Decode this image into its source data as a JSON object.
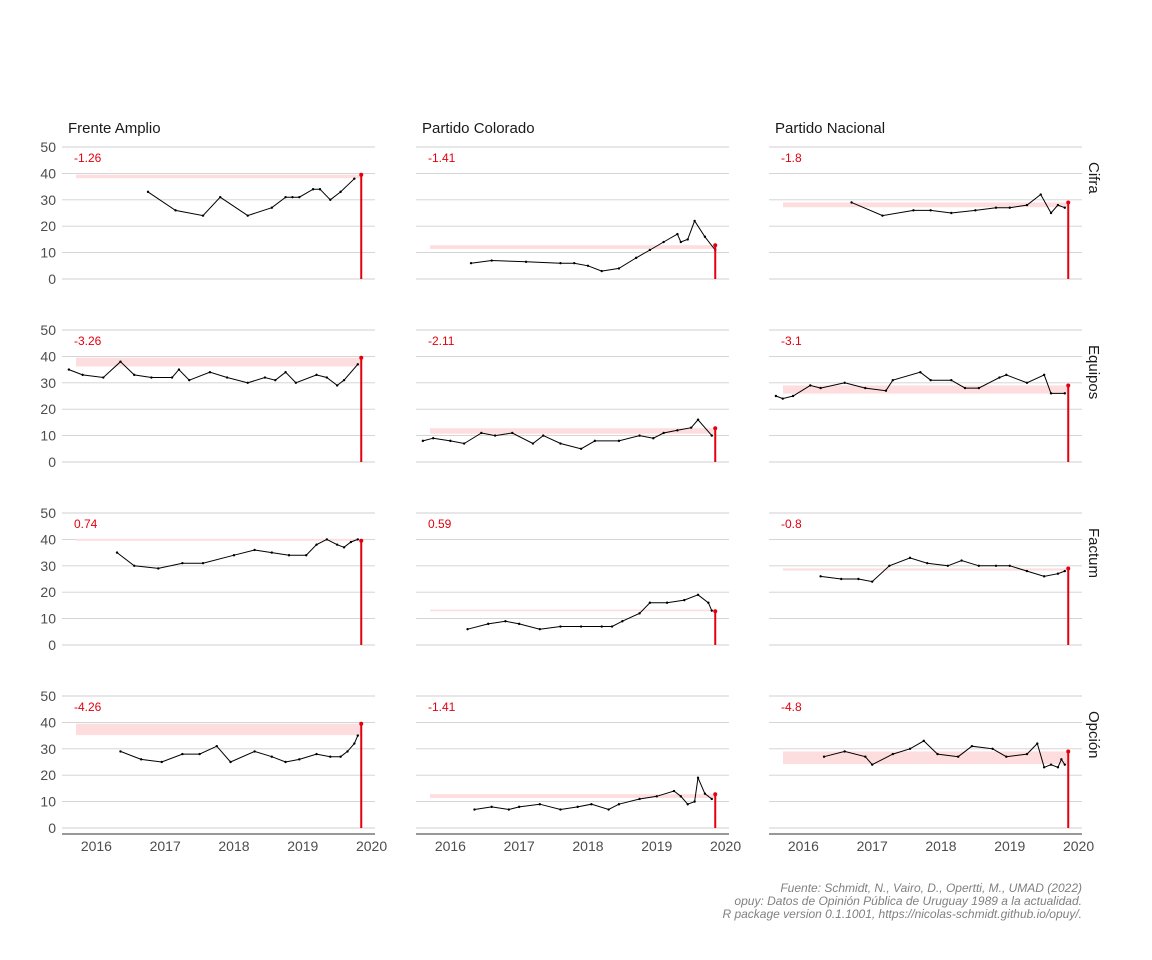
{
  "chart_data": {
    "type": "line",
    "layout": "faceted grid, 4 rows (pollster) x 3 columns (party)",
    "x_axis": {
      "ticks": [
        "2016",
        "2017",
        "2018",
        "2019",
        "2020"
      ],
      "range": [
        2015.5,
        2020.05
      ]
    },
    "y_axis": {
      "ticks": [
        "0",
        "10",
        "20",
        "30",
        "40",
        "50"
      ],
      "range": [
        0,
        50
      ]
    },
    "grid": "horizontal only",
    "colors": {
      "series": "#000000",
      "result": "#e3000f",
      "gap_band": "#fddddd",
      "gap_label": "#e3000f"
    },
    "result_x": 2019.85,
    "columns": [
      "Frente Amplio",
      "Partido Colorado",
      "Partido Nacional"
    ],
    "rows": [
      "Cifra",
      "Equipos",
      "Factum",
      "Opción"
    ],
    "panels": [
      {
        "pollster": "Cifra",
        "party": "Frente Amplio",
        "label": "-1.26",
        "result": 39.5,
        "band": [
          38.2,
          39.5
        ],
        "x": [
          2016.75,
          2017.15,
          2017.55,
          2017.8,
          2018.2,
          2018.55,
          2018.75,
          2018.85,
          2018.95,
          2019.15,
          2019.25,
          2019.4,
          2019.55,
          2019.75
        ],
        "y": [
          33,
          26,
          24,
          31,
          24,
          27,
          31,
          31,
          31,
          34,
          34,
          30,
          33,
          38
        ]
      },
      {
        "pollster": "Cifra",
        "party": "Partido Colorado",
        "label": "-1.41",
        "result": 12.8,
        "band": [
          11.4,
          12.8
        ],
        "x": [
          2016.3,
          2016.6,
          2017.1,
          2017.6,
          2017.8,
          2018.0,
          2018.2,
          2018.45,
          2018.7,
          2018.9,
          2019.1,
          2019.3,
          2019.35,
          2019.45,
          2019.55,
          2019.7,
          2019.85
        ],
        "y": [
          6,
          7,
          6.5,
          6,
          6,
          5,
          3,
          4,
          8,
          11,
          14,
          17,
          14,
          15,
          22,
          16,
          11
        ]
      },
      {
        "pollster": "Cifra",
        "party": "Partido Nacional",
        "label": "-1.8",
        "result": 29.0,
        "band": [
          27.2,
          29.0
        ],
        "x": [
          2016.7,
          2017.15,
          2017.6,
          2017.85,
          2018.15,
          2018.5,
          2018.8,
          2019.0,
          2019.25,
          2019.45,
          2019.6,
          2019.7,
          2019.8
        ],
        "y": [
          29,
          24,
          26,
          26,
          25,
          26,
          27,
          27,
          28,
          32,
          25,
          28,
          27
        ]
      },
      {
        "pollster": "Equipos",
        "party": "Frente Amplio",
        "label": "-3.26",
        "result": 39.5,
        "band": [
          36.2,
          39.5
        ],
        "x": [
          2015.6,
          2015.8,
          2016.1,
          2016.35,
          2016.55,
          2016.8,
          2017.1,
          2017.2,
          2017.35,
          2017.65,
          2017.9,
          2018.2,
          2018.45,
          2018.6,
          2018.75,
          2018.9,
          2019.2,
          2019.35,
          2019.5,
          2019.6,
          2019.8
        ],
        "y": [
          35,
          33,
          32,
          38,
          33,
          32,
          32,
          35,
          31,
          34,
          32,
          30,
          32,
          31,
          34,
          30,
          33,
          32,
          29,
          31,
          37
        ]
      },
      {
        "pollster": "Equipos",
        "party": "Partido Colorado",
        "label": "-2.11",
        "result": 12.8,
        "band": [
          10.7,
          12.8
        ],
        "x": [
          2015.6,
          2015.75,
          2016.0,
          2016.2,
          2016.45,
          2016.65,
          2016.9,
          2017.2,
          2017.35,
          2017.6,
          2017.9,
          2018.1,
          2018.45,
          2018.75,
          2018.95,
          2019.1,
          2019.3,
          2019.5,
          2019.6,
          2019.8
        ],
        "y": [
          8,
          9,
          8,
          7,
          11,
          10,
          11,
          7,
          10,
          7,
          5,
          8,
          8,
          10,
          9,
          11,
          12,
          13,
          16,
          10
        ]
      },
      {
        "pollster": "Equipos",
        "party": "Partido Nacional",
        "label": "-3.1",
        "result": 29.0,
        "band": [
          25.9,
          29.0
        ],
        "x": [
          2015.6,
          2015.7,
          2015.85,
          2016.1,
          2016.25,
          2016.6,
          2016.9,
          2017.2,
          2017.3,
          2017.7,
          2017.85,
          2018.15,
          2018.35,
          2018.55,
          2018.85,
          2018.95,
          2019.25,
          2019.5,
          2019.6,
          2019.8
        ],
        "y": [
          25,
          24,
          25,
          29,
          28,
          30,
          28,
          27,
          31,
          34,
          31,
          31,
          28,
          28,
          32,
          33,
          30,
          33,
          26,
          26
        ]
      },
      {
        "pollster": "Factum",
        "party": "Frente Amplio",
        "label": "0.74",
        "result": 39.5,
        "band": [
          39.5,
          40.2
        ],
        "x": [
          2016.3,
          2016.55,
          2016.9,
          2017.25,
          2017.55,
          2018.0,
          2018.3,
          2018.55,
          2018.8,
          2019.05,
          2019.2,
          2019.35,
          2019.5,
          2019.6,
          2019.7,
          2019.8
        ],
        "y": [
          35,
          30,
          29,
          31,
          31,
          34,
          36,
          35,
          34,
          34,
          38,
          40,
          38,
          37,
          39,
          40
        ]
      },
      {
        "pollster": "Factum",
        "party": "Partido Colorado",
        "label": "0.59",
        "result": 12.8,
        "band": [
          12.8,
          13.4
        ],
        "x": [
          2016.25,
          2016.55,
          2016.8,
          2017.0,
          2017.3,
          2017.6,
          2017.9,
          2018.2,
          2018.35,
          2018.5,
          2018.75,
          2018.9,
          2019.15,
          2019.4,
          2019.6,
          2019.75,
          2019.8
        ],
        "y": [
          6,
          8,
          9,
          8,
          6,
          7,
          7,
          7,
          7,
          9,
          12,
          16,
          16,
          17,
          19,
          16,
          13
        ]
      },
      {
        "pollster": "Factum",
        "party": "Partido Nacional",
        "label": "-0.8",
        "result": 29.0,
        "band": [
          28.2,
          29.0
        ],
        "x": [
          2016.25,
          2016.55,
          2016.8,
          2017.0,
          2017.25,
          2017.55,
          2017.8,
          2018.1,
          2018.3,
          2018.55,
          2018.8,
          2019.0,
          2019.25,
          2019.5,
          2019.7,
          2019.8
        ],
        "y": [
          26,
          25,
          25,
          24,
          30,
          33,
          31,
          30,
          32,
          30,
          30,
          30,
          28,
          26,
          27,
          28
        ]
      },
      {
        "pollster": "Opción",
        "party": "Frente Amplio",
        "label": "-4.26",
        "result": 39.5,
        "band": [
          35.2,
          39.5
        ],
        "x": [
          2016.35,
          2016.65,
          2016.95,
          2017.25,
          2017.5,
          2017.75,
          2017.95,
          2018.3,
          2018.55,
          2018.75,
          2018.95,
          2019.2,
          2019.4,
          2019.55,
          2019.65,
          2019.75,
          2019.8
        ],
        "y": [
          29,
          26,
          25,
          28,
          28,
          31,
          25,
          29,
          27,
          25,
          26,
          28,
          27,
          27,
          29,
          32,
          35
        ]
      },
      {
        "pollster": "Opción",
        "party": "Partido Colorado",
        "label": "-1.41",
        "result": 12.8,
        "band": [
          11.4,
          12.8
        ],
        "x": [
          2016.35,
          2016.6,
          2016.85,
          2017.0,
          2017.3,
          2017.6,
          2017.85,
          2018.05,
          2018.3,
          2018.45,
          2018.75,
          2019.0,
          2019.25,
          2019.35,
          2019.45,
          2019.55,
          2019.6,
          2019.7,
          2019.8
        ],
        "y": [
          7,
          8,
          7,
          8,
          9,
          7,
          8,
          9,
          7,
          9,
          11,
          12,
          14,
          12,
          9,
          10,
          19,
          13,
          11
        ]
      },
      {
        "pollster": "Opción",
        "party": "Partido Nacional",
        "label": "-4.8",
        "result": 29.0,
        "band": [
          24.2,
          29.0
        ],
        "x": [
          2016.3,
          2016.6,
          2016.9,
          2017.0,
          2017.3,
          2017.55,
          2017.75,
          2017.95,
          2018.25,
          2018.45,
          2018.75,
          2018.95,
          2019.25,
          2019.4,
          2019.5,
          2019.6,
          2019.7,
          2019.75,
          2019.8
        ],
        "y": [
          27,
          29,
          27,
          24,
          28,
          30,
          33,
          28,
          27,
          31,
          30,
          27,
          28,
          32,
          23,
          24,
          23,
          26,
          24
        ]
      }
    ],
    "caption": [
      "Fuente: Schmidt, N., Vairo, D., Opertti, M., UMAD (2022)",
      "opuy: Datos de Opinión Pública de Uruguay 1989 a la actualidad.",
      "R package version 0.1.1001, https://nicolas-schmidt.github.io/opuy/."
    ]
  }
}
